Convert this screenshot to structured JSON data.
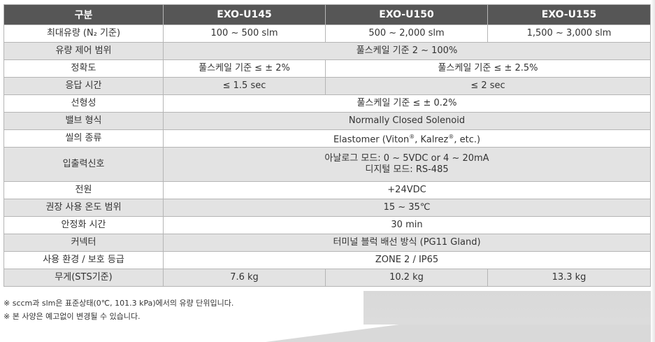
{
  "header": {
    "col0": "구분",
    "col1": "EXO-U145",
    "col2": "EXO-U150",
    "col3": "EXO-U155"
  },
  "rows": {
    "max_flow": {
      "label": "최대유량 (N₂ 기준)",
      "u145": "100 ~ 500 slm",
      "u150": "500 ~ 2,000 slm",
      "u155": "1,500 ~ 3,000 slm"
    },
    "flow_control_range": {
      "label": "유량 제어 범위",
      "value": "풀스케일 기준 2 ~ 100%"
    },
    "accuracy": {
      "label": "정확도",
      "u145": "풀스케일 기준 ≤ ± 2%",
      "u150_u155": "풀스케일 기준 ≤ ± 2.5%"
    },
    "response_time": {
      "label": "응답 시간",
      "u145": "≤ 1.5 sec",
      "u150_u155": "≤ 2 sec"
    },
    "linearity": {
      "label": "선형성",
      "value": "풀스케일 기준 ≤ ± 0.2%"
    },
    "valve_type": {
      "label": "밸브 형식",
      "value": "Normally Closed Solenoid"
    },
    "seal_type": {
      "label": "씰의 종류",
      "value_a": "Elastomer (Viton",
      "sup1": "®",
      "value_b": ", Kalrez",
      "sup2": "®",
      "value_c": ", etc.)"
    },
    "io_signal": {
      "label": "입출력신호",
      "line1": "아날로그 모드: 0 ~ 5VDC or 4 ~ 20mA",
      "line2": "디지털 모드: RS-485"
    },
    "power": {
      "label": "전원",
      "value": "+24VDC"
    },
    "temp_range": {
      "label": "권장 사용 온도 범위",
      "value": "15 ~ 35℃"
    },
    "stabilization": {
      "label": "안정화 시간",
      "value": "30 min"
    },
    "connector": {
      "label": "커넥터",
      "value": "터미널 블럭 배선 방식 (PG11 Gland)"
    },
    "environment": {
      "label": "사용 환경 / 보호 등급",
      "value": "ZONE 2 / IP65"
    },
    "weight": {
      "label": "무게(STS기준)",
      "u145": "7.6 kg",
      "u150": "10.2 kg",
      "u155": "13.3 kg"
    }
  },
  "notes": {
    "note1": "※ sccm과 slm은 표준상태(0℃, 101.3 kPa)에서의 유량 단위입니다.",
    "note2": "※ 본 사양은 예고없이 변경될 수 있습니다."
  },
  "colors": {
    "header_bg": "#565656",
    "row_gray": "#e3e3e3",
    "border": "#b5b5b5"
  }
}
